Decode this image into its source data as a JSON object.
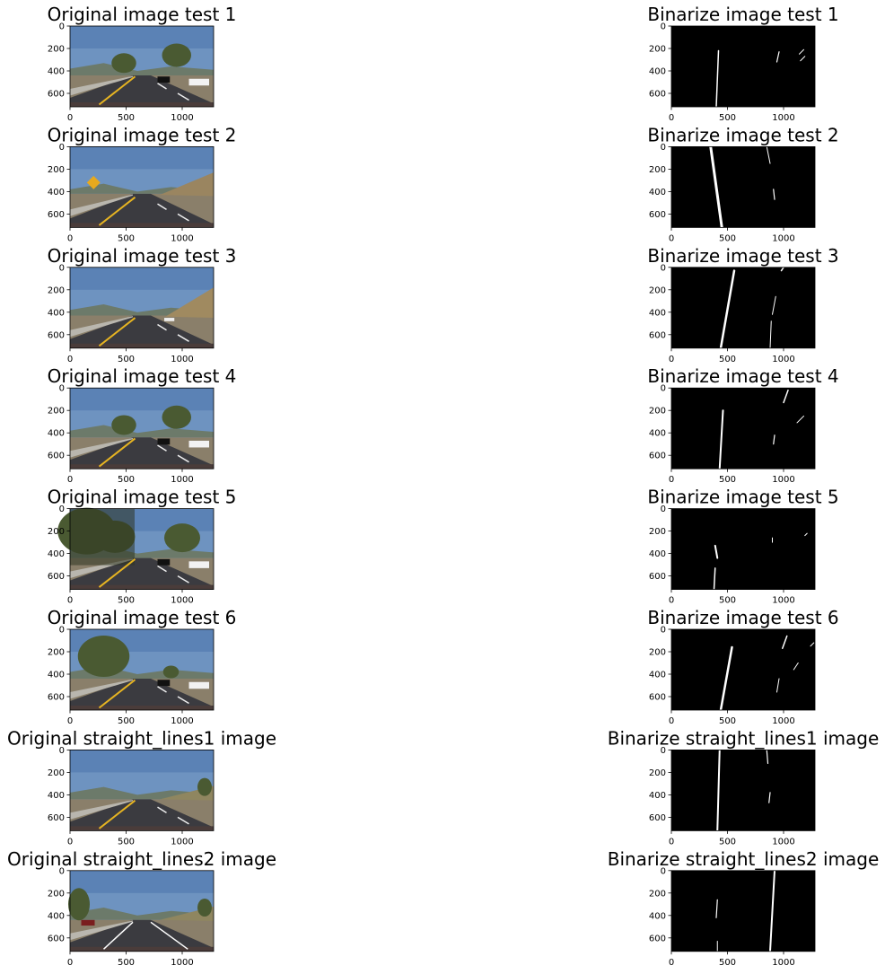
{
  "figure": {
    "panels": [
      {
        "title": "Original image test 1",
        "kind": "photo",
        "scene": "trees"
      },
      {
        "title": "Binarize image test 1",
        "kind": "binary",
        "pattern": 1
      },
      {
        "title": "Original image test 2",
        "kind": "photo",
        "scene": "sign"
      },
      {
        "title": "Binarize image test 2",
        "kind": "binary",
        "pattern": 2
      },
      {
        "title": "Original image test 3",
        "kind": "photo",
        "scene": "hill"
      },
      {
        "title": "Binarize image test 3",
        "kind": "binary",
        "pattern": 3
      },
      {
        "title": "Original image test 4",
        "kind": "photo",
        "scene": "trees"
      },
      {
        "title": "Binarize image test 4",
        "kind": "binary",
        "pattern": 4
      },
      {
        "title": "Original image test 5",
        "kind": "photo",
        "scene": "shade"
      },
      {
        "title": "Binarize image test 5",
        "kind": "binary",
        "pattern": 5
      },
      {
        "title": "Original image test 6",
        "kind": "photo",
        "scene": "tree-left"
      },
      {
        "title": "Binarize image test 6",
        "kind": "binary",
        "pattern": 6
      },
      {
        "title": "Original straight_lines1 image",
        "kind": "photo",
        "scene": "straight"
      },
      {
        "title": "Binarize straight_lines1 image",
        "kind": "binary",
        "pattern": 7
      },
      {
        "title": "Original straight_lines2 image",
        "kind": "photo",
        "scene": "straight2"
      },
      {
        "title": "Binarize straight_lines2 image",
        "kind": "binary",
        "pattern": 8
      }
    ]
  },
  "chart_data": {
    "type": "image-grid",
    "rows": 8,
    "cols": 2,
    "x_ticks": [
      0,
      500,
      1000
    ],
    "y_ticks": [
      0,
      200,
      400,
      600
    ],
    "xlim": [
      0,
      1280
    ],
    "ylim": [
      720,
      0
    ],
    "colors": {
      "sky": "#6e93c0",
      "road": "#3b3b40",
      "lane_yellow": "#e6b422",
      "foliage": "#4a5a32",
      "binary_bg": "#000000",
      "binary_fg": "#ffffff"
    }
  }
}
